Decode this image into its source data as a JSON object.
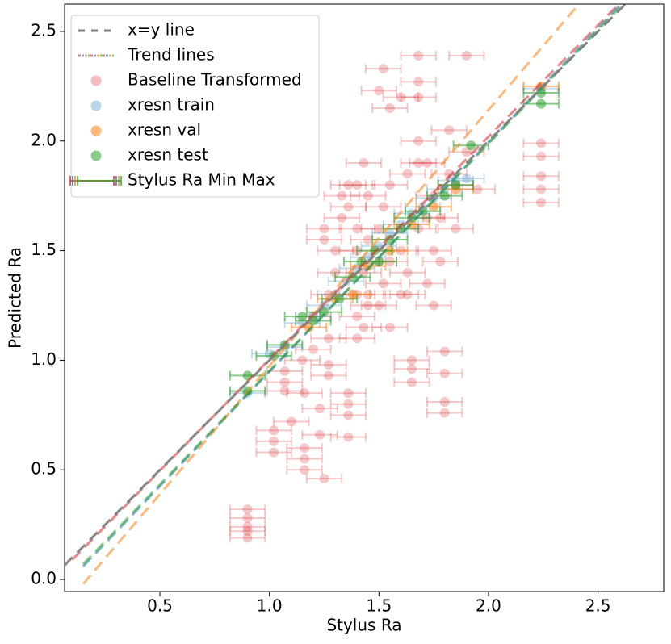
{
  "chart_data": {
    "type": "scatter",
    "x_label": "Stylus Ra",
    "y_label": "Predicted Ra",
    "xlim": [
      0.065,
      2.8
    ],
    "ylim": [
      -0.055,
      2.625
    ],
    "xticks": [
      0.5,
      {
        "value": 1.0,
        "label": "1.0"
      },
      1.5,
      {
        "value": 2.0,
        "label": "2.0"
      },
      2.5
    ],
    "yticks": [
      {
        "value": 0.0,
        "label": "0.0"
      },
      0.5,
      {
        "value": 1.0,
        "label": "1.0"
      },
      1.5,
      {
        "value": 2.0,
        "label": "2.0"
      },
      2.5
    ],
    "legend": "upper left",
    "errorbar_name": "Stylus Ra Min Max",
    "identity_line": {
      "name": "x=y line",
      "color": "#7f7f7f",
      "x": [
        0.065,
        2.625
      ],
      "y": [
        0.065,
        2.625
      ]
    },
    "trend_lines": {
      "name": "Trend lines",
      "lines": [
        {
          "color": "#d62728",
          "x": [
            0.1,
            2.6
          ],
          "y": [
            0.09,
            2.63
          ]
        },
        {
          "color": "#1f77b4",
          "x": [
            0.15,
            2.6
          ],
          "y": [
            0.06,
            2.62
          ]
        },
        {
          "color": "#ff7f0e",
          "x": [
            0.15,
            2.4
          ],
          "y": [
            -0.02,
            2.61
          ]
        },
        {
          "color": "#2ca02c",
          "x": [
            0.15,
            2.6
          ],
          "y": [
            0.07,
            2.61
          ]
        }
      ]
    },
    "series": [
      {
        "name": "Baseline Transformed",
        "color": "#d62728",
        "opacity": 0.25,
        "xerr": 0.08,
        "x": [
          0.9,
          0.9,
          0.9,
          0.9,
          0.9,
          1.02,
          1.02,
          1.02,
          1.07,
          1.07,
          1.07,
          1.1,
          1.15,
          1.16,
          1.16,
          1.16,
          1.16,
          1.2,
          1.2,
          1.23,
          1.23,
          1.25,
          1.25,
          1.25,
          1.27,
          1.27,
          1.27,
          1.27,
          1.3,
          1.3,
          1.33,
          1.33,
          1.36,
          1.36,
          1.36,
          1.36,
          1.36,
          1.36,
          1.4,
          1.4,
          1.4,
          1.4,
          1.4,
          1.4,
          1.43,
          1.43,
          1.43,
          1.45,
          1.45,
          1.45,
          1.45,
          1.5,
          1.5,
          1.5,
          1.5,
          1.52,
          1.52,
          1.52,
          1.55,
          1.55,
          1.55,
          1.55,
          1.6,
          1.6,
          1.6,
          1.63,
          1.63,
          1.63,
          1.65,
          1.65,
          1.65,
          1.68,
          1.68,
          1.68,
          1.68,
          1.68,
          1.68,
          1.72,
          1.72,
          1.72,
          1.75,
          1.75,
          1.75,
          1.78,
          1.78,
          1.8,
          1.8,
          1.8,
          1.8,
          1.82,
          1.82,
          1.85,
          1.85,
          1.9,
          1.9,
          1.95,
          2.24,
          2.24,
          2.24,
          2.24,
          2.24
        ],
        "y": [
          0.32,
          0.28,
          0.24,
          0.22,
          0.19,
          0.68,
          0.63,
          0.58,
          0.95,
          0.9,
          0.86,
          0.72,
          1.0,
          0.85,
          0.6,
          0.55,
          0.5,
          1.2,
          1.05,
          0.78,
          0.66,
          1.6,
          1.55,
          0.46,
          1.3,
          1.1,
          0.98,
          0.93,
          1.5,
          1.4,
          1.75,
          1.65,
          0.85,
          0.8,
          0.75,
          0.65,
          1.8,
          1.7,
          1.8,
          1.6,
          1.5,
          1.3,
          1.2,
          1.1,
          1.9,
          1.4,
          1.15,
          1.75,
          1.55,
          1.3,
          1.25,
          2.23,
          1.6,
          1.45,
          1.25,
          2.33,
          1.7,
          1.35,
          2.15,
          1.8,
          1.45,
          1.15,
          2.2,
          1.5,
          1.3,
          1.85,
          1.4,
          1.3,
          1.0,
          0.96,
          0.9,
          2.39,
          2.27,
          2.2,
          2.0,
          1.9,
          1.6,
          1.9,
          1.65,
          1.35,
          1.75,
          1.5,
          1.25,
          1.65,
          1.45,
          1.04,
          0.94,
          0.81,
          0.76,
          2.05,
          1.85,
          1.6,
          1.8,
          2.39,
          1.95,
          1.78,
          1.99,
          1.93,
          1.84,
          1.78,
          1.72
        ]
      },
      {
        "name": "xresn train",
        "color": "#1f77b4",
        "opacity": 0.25,
        "xerr": 0.08,
        "x": [
          0.9,
          1.0,
          1.07,
          1.15,
          1.2,
          1.25,
          1.3,
          1.35,
          1.4,
          1.45,
          1.5,
          1.55,
          1.6,
          1.65,
          1.7,
          1.75,
          1.8,
          1.85,
          1.9,
          2.24
        ],
        "y": [
          0.85,
          1.03,
          1.06,
          1.17,
          1.2,
          1.25,
          1.3,
          1.36,
          1.42,
          1.47,
          1.52,
          1.58,
          1.62,
          1.67,
          1.7,
          1.74,
          1.78,
          1.82,
          1.83,
          2.24
        ]
      },
      {
        "name": "xresn val",
        "color": "#ff7f0e",
        "opacity": 0.55,
        "xerr": 0.08,
        "x": [
          1.18,
          1.3,
          1.38,
          1.45,
          1.55,
          1.65,
          1.75,
          1.85,
          2.24
        ],
        "y": [
          1.15,
          1.28,
          1.3,
          1.43,
          1.5,
          1.62,
          1.7,
          1.78,
          2.25
        ]
      },
      {
        "name": "xresn test",
        "color": "#2ca02c",
        "opacity": 0.55,
        "xerr": 0.08,
        "x": [
          0.9,
          0.9,
          1.02,
          1.07,
          1.15,
          1.2,
          1.25,
          1.32,
          1.38,
          1.42,
          1.48,
          1.5,
          1.55,
          1.6,
          1.65,
          1.7,
          1.8,
          1.85,
          1.92,
          2.24,
          2.24
        ],
        "y": [
          0.93,
          0.86,
          1.02,
          1.07,
          1.2,
          1.18,
          1.22,
          1.28,
          1.38,
          1.45,
          1.5,
          1.45,
          1.55,
          1.6,
          1.65,
          1.68,
          1.75,
          1.8,
          1.98,
          2.17,
          2.22
        ]
      }
    ]
  }
}
